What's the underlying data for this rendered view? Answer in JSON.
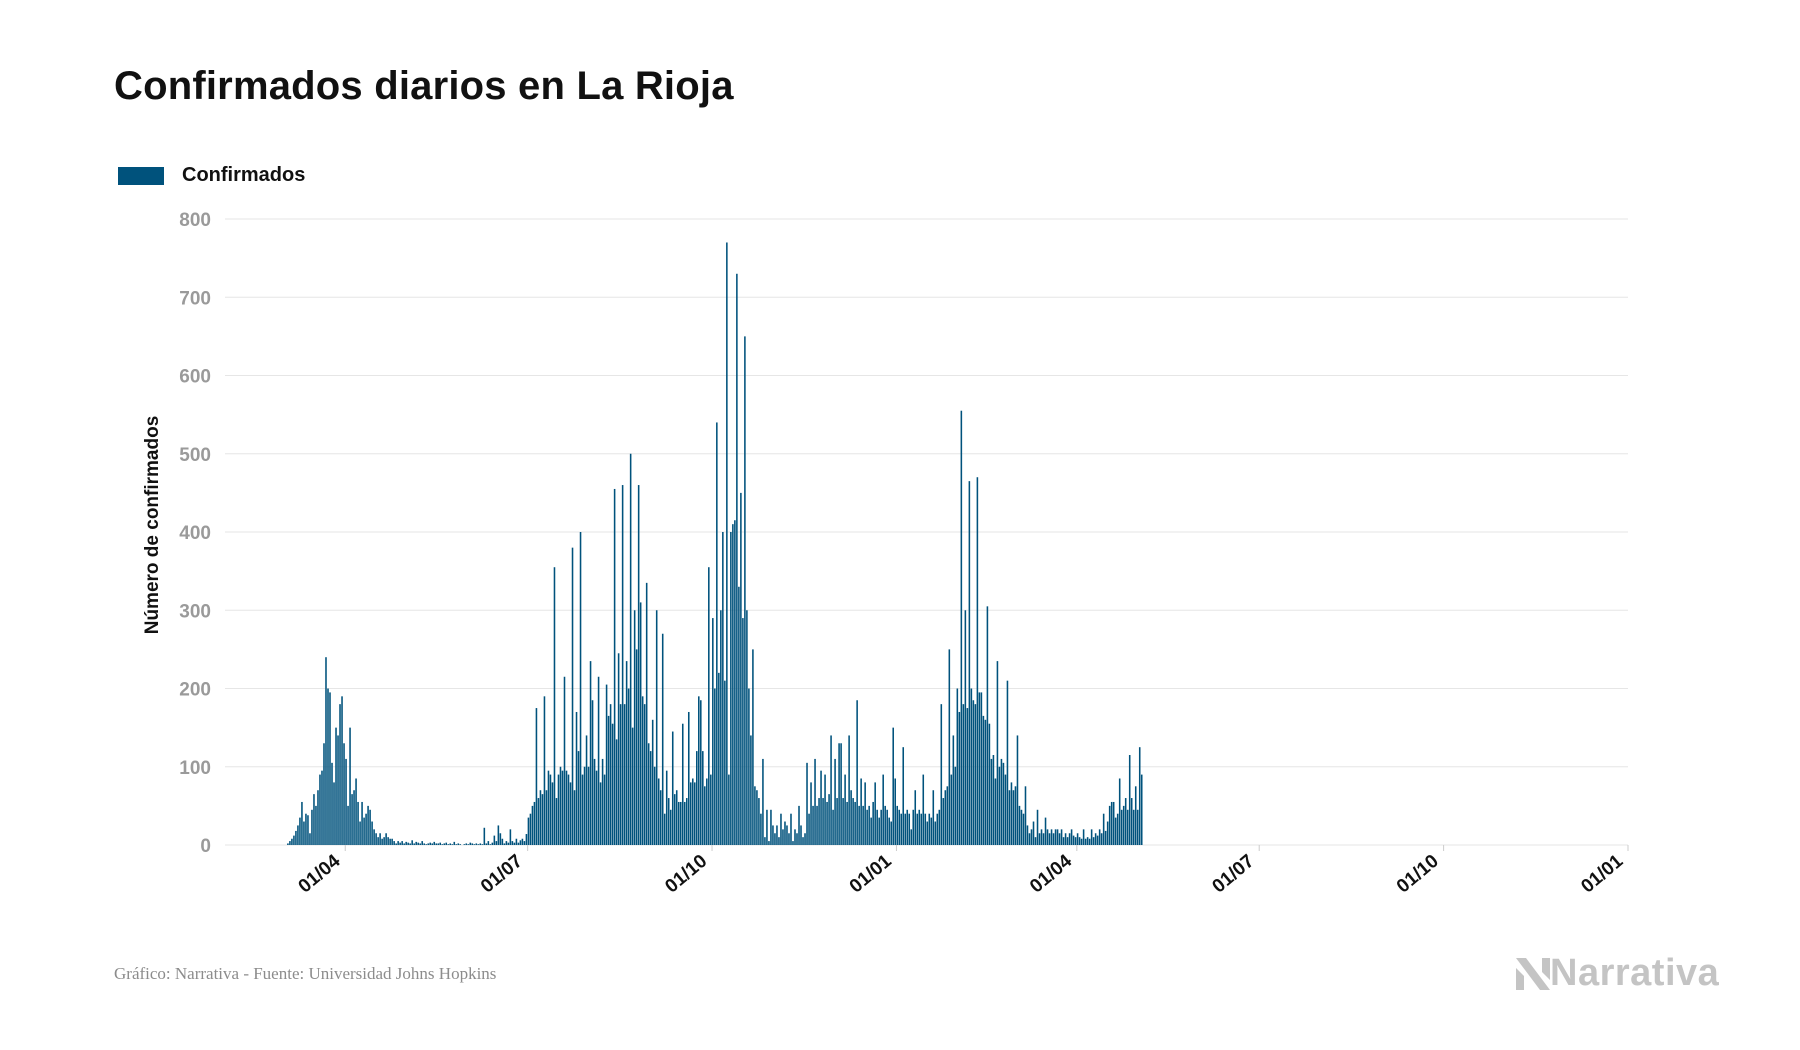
{
  "chart_data": {
    "type": "bar",
    "title": "Confirmados diarios en La Rioja",
    "legend": {
      "position": "top-left",
      "label": "Confirmados"
    },
    "ylabel": "Número de confirmados",
    "xlabel": "",
    "ylim": [
      0,
      800
    ],
    "yticks": [
      0,
      100,
      200,
      300,
      400,
      500,
      600,
      700,
      800
    ],
    "xlim": [
      "2020-02-01",
      "2022-01-01"
    ],
    "xticks": [
      {
        "date": "2020-04-01",
        "label": "01/04"
      },
      {
        "date": "2020-07-01",
        "label": "01/07"
      },
      {
        "date": "2020-10-01",
        "label": "01/10"
      },
      {
        "date": "2021-01-01",
        "label": "01/01"
      },
      {
        "date": "2021-04-01",
        "label": "01/04"
      },
      {
        "date": "2021-07-01",
        "label": "01/07"
      },
      {
        "date": "2021-10-01",
        "label": "01/10"
      },
      {
        "date": "2022-01-01",
        "label": "01/01"
      }
    ],
    "grid": true,
    "color": "#00527c",
    "series": [
      {
        "name": "Confirmados",
        "start_date": "2020-03-03",
        "values": [
          2,
          5,
          8,
          12,
          18,
          25,
          35,
          55,
          30,
          40,
          38,
          15,
          45,
          65,
          50,
          70,
          90,
          95,
          130,
          240,
          200,
          195,
          105,
          80,
          150,
          140,
          180,
          190,
          130,
          110,
          50,
          150,
          65,
          70,
          85,
          55,
          30,
          55,
          35,
          40,
          50,
          45,
          30,
          20,
          15,
          10,
          15,
          8,
          10,
          15,
          10,
          8,
          8,
          5,
          2,
          5,
          3,
          5,
          2,
          4,
          3,
          2,
          6,
          2,
          4,
          3,
          2,
          5,
          2,
          1,
          2,
          3,
          2,
          4,
          2,
          2,
          3,
          1,
          2,
          3,
          1,
          2,
          1,
          4,
          1,
          2,
          1,
          0,
          1,
          2,
          1,
          3,
          2,
          1,
          2,
          1,
          2,
          1,
          22,
          2,
          5,
          1,
          3,
          12,
          5,
          25,
          15,
          8,
          2,
          5,
          3,
          20,
          5,
          3,
          8,
          3,
          6,
          8,
          5,
          14,
          35,
          40,
          50,
          55,
          175,
          60,
          70,
          65,
          190,
          70,
          95,
          90,
          80,
          355,
          60,
          90,
          100,
          95,
          215,
          95,
          90,
          80,
          380,
          70,
          170,
          120,
          400,
          90,
          100,
          140,
          100,
          235,
          185,
          110,
          95,
          215,
          80,
          110,
          90,
          205,
          165,
          180,
          155,
          455,
          135,
          245,
          180,
          460,
          180,
          235,
          200,
          500,
          150,
          300,
          250,
          460,
          310,
          190,
          180,
          335,
          130,
          120,
          160,
          100,
          300,
          85,
          70,
          270,
          40,
          95,
          60,
          45,
          145,
          65,
          70,
          55,
          55,
          155,
          55,
          60,
          170,
          80,
          85,
          80,
          120,
          190,
          185,
          120,
          75,
          85,
          355,
          90,
          290,
          200,
          540,
          220,
          300,
          400,
          210,
          770,
          90,
          400,
          410,
          415,
          730,
          330,
          450,
          290,
          650,
          300,
          200,
          140,
          250,
          75,
          70,
          60,
          40,
          110,
          10,
          45,
          5,
          45,
          25,
          15,
          25,
          10,
          40,
          20,
          30,
          25,
          15,
          40,
          5,
          20,
          15,
          50,
          25,
          10,
          15,
          105,
          40,
          80,
          50,
          110,
          50,
          60,
          95,
          60,
          90,
          55,
          65,
          140,
          45,
          110,
          60,
          130,
          130,
          60,
          90,
          55,
          140,
          70,
          60,
          55,
          185,
          50,
          85,
          50,
          80,
          45,
          50,
          35,
          55,
          80,
          45,
          35,
          45,
          90,
          50,
          45,
          35,
          30,
          150,
          85,
          50,
          45,
          40,
          125,
          40,
          45,
          40,
          20,
          45,
          70,
          40,
          45,
          40,
          90,
          40,
          30,
          40,
          35,
          70,
          30,
          40,
          45,
          180,
          60,
          70,
          75,
          250,
          90,
          140,
          100,
          200,
          170,
          555,
          180,
          300,
          175,
          465,
          200,
          185,
          180,
          470,
          195,
          195,
          165,
          160,
          305,
          155,
          110,
          115,
          85,
          235,
          100,
          110,
          105,
          90,
          210,
          70,
          80,
          70,
          75,
          140,
          50,
          45,
          40,
          75,
          25,
          15,
          20,
          30,
          10,
          45,
          15,
          20,
          15,
          35,
          20,
          15,
          20,
          15,
          20,
          20,
          15,
          20,
          10,
          15,
          10,
          15,
          20,
          12,
          10,
          15,
          10,
          8,
          20,
          8,
          10,
          8,
          20,
          10,
          15,
          12,
          20,
          15,
          40,
          18,
          30,
          50,
          55,
          55,
          35,
          40,
          85,
          45,
          50,
          60,
          45,
          115,
          60,
          45,
          75,
          45,
          125,
          90
        ]
      }
    ]
  },
  "footer": {
    "source": "Gráfico: Narrativa - Fuente: Universidad Johns Hopkins",
    "brand": "Narrativa",
    "brand_icon": "narrativa-logo-icon",
    "brand_color": "#c4c4c4"
  }
}
